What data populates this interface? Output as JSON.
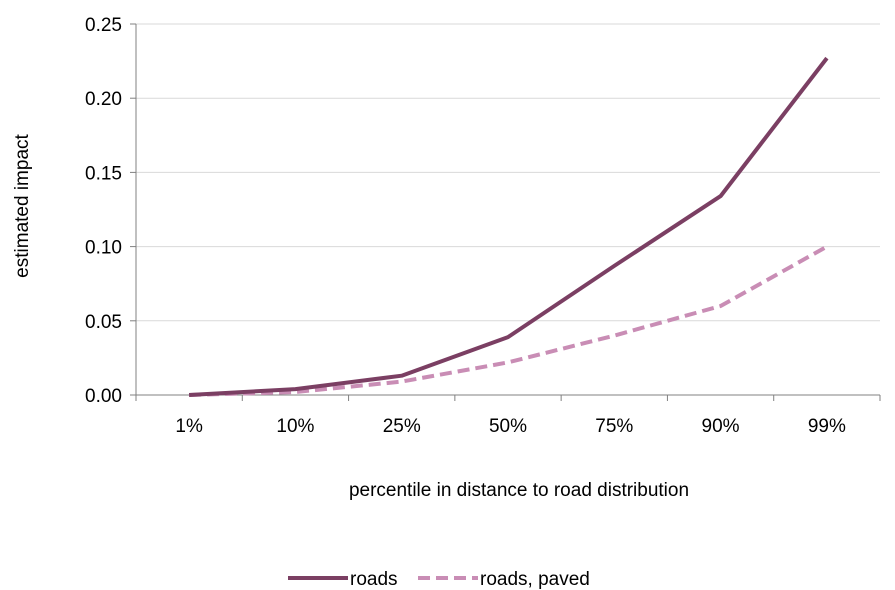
{
  "chart_data": {
    "type": "line",
    "title": "",
    "xlabel": "percentile in distance to road distribution",
    "ylabel": "estimated impact",
    "categories": [
      "1%",
      "10%",
      "25%",
      "50%",
      "75%",
      "90%",
      "99%"
    ],
    "ylim": [
      0,
      0.25
    ],
    "yticks": [
      "0.00",
      "0.05",
      "0.10",
      "0.15",
      "0.20",
      "0.25"
    ],
    "grid": "horizontal",
    "legend_position": "bottom",
    "series": [
      {
        "name": "roads",
        "values": [
          0.0,
          0.004,
          0.013,
          0.039,
          0.087,
          0.134,
          0.227
        ],
        "color": "#7b3f63",
        "style": "solid"
      },
      {
        "name": "roads, paved",
        "values": [
          0.0,
          0.002,
          0.009,
          0.022,
          0.04,
          0.06,
          0.1
        ],
        "color": "#c98db5",
        "style": "dashed"
      }
    ]
  }
}
